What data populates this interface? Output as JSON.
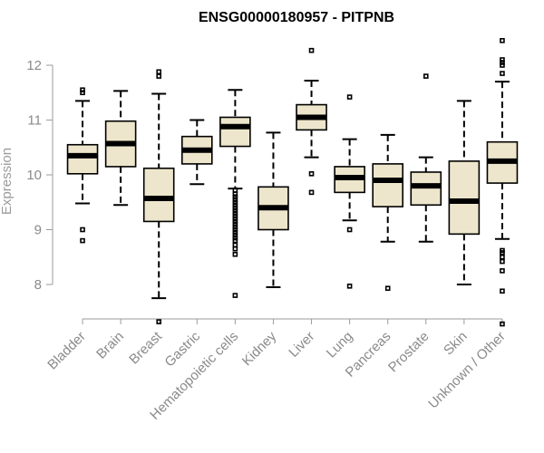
{
  "chart_data": {
    "type": "boxplot",
    "title": "ENSG00000180957 - PITPNB",
    "xlabel": "",
    "ylabel": "Expression",
    "ylim": [
      7.2,
      12.6
    ],
    "yticks": [
      8,
      9,
      10,
      11,
      12
    ],
    "colors": {
      "box_fill": "#ede6cc",
      "axis": "#9b9b9b"
    },
    "categories": [
      "Bladder",
      "Brain",
      "Breast",
      "Gastric",
      "Hematopoietic cells",
      "Kidney",
      "Liver",
      "Lung",
      "Pancreas",
      "Prostate",
      "Skin",
      "Unknown / Other"
    ],
    "boxes": [
      {
        "name": "Bladder",
        "whisker_low": 9.48,
        "q1": 10.02,
        "median": 10.35,
        "q3": 10.55,
        "whisker_high": 11.35,
        "outliers": [
          11.5,
          11.55,
          9.0,
          8.8
        ]
      },
      {
        "name": "Brain",
        "whisker_low": 9.45,
        "q1": 10.15,
        "median": 10.57,
        "q3": 10.98,
        "whisker_high": 11.53,
        "outliers": []
      },
      {
        "name": "Breast",
        "whisker_low": 7.75,
        "q1": 9.15,
        "median": 9.57,
        "q3": 10.12,
        "whisker_high": 11.48,
        "outliers": [
          11.8,
          11.88,
          7.32
        ]
      },
      {
        "name": "Gastric",
        "whisker_low": 9.83,
        "q1": 10.2,
        "median": 10.45,
        "q3": 10.7,
        "whisker_high": 11.0,
        "outliers": []
      },
      {
        "name": "Hematopoietic cells",
        "whisker_low": 9.75,
        "q1": 10.52,
        "median": 10.88,
        "q3": 11.05,
        "whisker_high": 11.55,
        "outliers": [
          9.72,
          9.65,
          9.6,
          9.55,
          9.5,
          9.45,
          9.4,
          9.35,
          9.3,
          9.25,
          9.2,
          9.15,
          9.1,
          9.05,
          9.0,
          8.95,
          8.9,
          8.85,
          8.8,
          8.72,
          8.65,
          8.55,
          7.8
        ]
      },
      {
        "name": "Kidney",
        "whisker_low": 7.95,
        "q1": 9.0,
        "median": 9.4,
        "q3": 9.78,
        "whisker_high": 10.77,
        "outliers": []
      },
      {
        "name": "Liver",
        "whisker_low": 10.32,
        "q1": 10.82,
        "median": 11.05,
        "q3": 11.28,
        "whisker_high": 11.72,
        "outliers": [
          12.27,
          10.02,
          9.68
        ]
      },
      {
        "name": "Lung",
        "whisker_low": 9.17,
        "q1": 9.68,
        "median": 9.95,
        "q3": 10.15,
        "whisker_high": 10.65,
        "outliers": [
          11.42,
          9.0,
          7.97
        ]
      },
      {
        "name": "Pancreas",
        "whisker_low": 8.78,
        "q1": 9.42,
        "median": 9.9,
        "q3": 10.2,
        "whisker_high": 10.73,
        "outliers": [
          7.93
        ]
      },
      {
        "name": "Prostate",
        "whisker_low": 8.78,
        "q1": 9.45,
        "median": 9.8,
        "q3": 10.05,
        "whisker_high": 10.32,
        "outliers": [
          11.8
        ]
      },
      {
        "name": "Skin",
        "whisker_low": 8.0,
        "q1": 8.92,
        "median": 9.52,
        "q3": 10.25,
        "whisker_high": 11.35,
        "outliers": []
      },
      {
        "name": "Unknown / Other",
        "whisker_low": 8.83,
        "q1": 9.85,
        "median": 10.25,
        "q3": 10.6,
        "whisker_high": 11.7,
        "outliers": [
          12.45,
          12.1,
          12.05,
          12.0,
          11.85,
          8.62,
          8.58,
          8.5,
          8.42,
          8.25,
          7.88,
          7.28
        ]
      }
    ]
  }
}
